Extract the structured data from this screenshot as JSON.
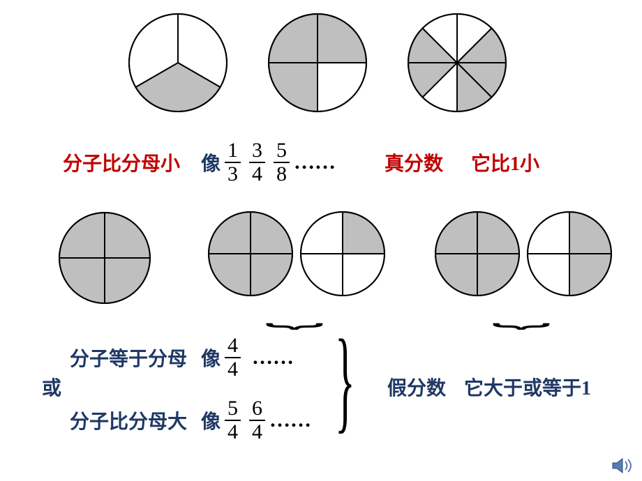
{
  "colors": {
    "red": "#c00000",
    "blue": "#1f3864",
    "black": "#000000",
    "fill": "#bfbfbf",
    "stroke": "#000000",
    "bg": "#ffffff"
  },
  "circle": {
    "radius": 70,
    "stroke_width": 2
  },
  "row1": {
    "circles": [
      {
        "slices": 3,
        "filled": [
          1
        ]
      },
      {
        "slices": 4,
        "filled": [
          0,
          2,
          3
        ]
      },
      {
        "slices": 8,
        "filled": [
          1,
          2,
          3,
          5,
          6
        ]
      }
    ]
  },
  "row1_text": {
    "label1": "分子比分母小",
    "like": "像",
    "fractions": [
      {
        "n": "1",
        "d": "3"
      },
      {
        "n": "3",
        "d": "4"
      },
      {
        "n": "5",
        "d": "8"
      }
    ],
    "ellipsis": "……",
    "label2": "真分数",
    "label3": "它比1小"
  },
  "row2": {
    "group1": {
      "r": 65,
      "circles": [
        {
          "slices": 4,
          "filled": [
            0,
            1,
            2,
            3
          ]
        }
      ]
    },
    "group2": {
      "r": 60,
      "circles": [
        {
          "slices": 4,
          "filled": [
            0,
            1,
            2,
            3
          ]
        },
        {
          "slices": 4,
          "filled": [
            0
          ]
        }
      ]
    },
    "group3": {
      "r": 60,
      "circles": [
        {
          "slices": 4,
          "filled": [
            0,
            1,
            2,
            3
          ]
        },
        {
          "slices": 4,
          "filled": [
            0,
            1
          ]
        }
      ]
    }
  },
  "bottom": {
    "lineA": {
      "label": "分子等于分母",
      "like": "像",
      "fractions": [
        {
          "n": "4",
          "d": "4"
        }
      ],
      "ellipsis": "……"
    },
    "or": "或",
    "lineB": {
      "label": "分子比分母大",
      "like": "像",
      "fractions": [
        {
          "n": "5",
          "d": "4"
        },
        {
          "n": "6",
          "d": "4"
        }
      ],
      "ellipsis": "……"
    },
    "result1": "假分数",
    "result2": "它大于或等于1"
  },
  "icon": {
    "name": "sound-icon"
  }
}
